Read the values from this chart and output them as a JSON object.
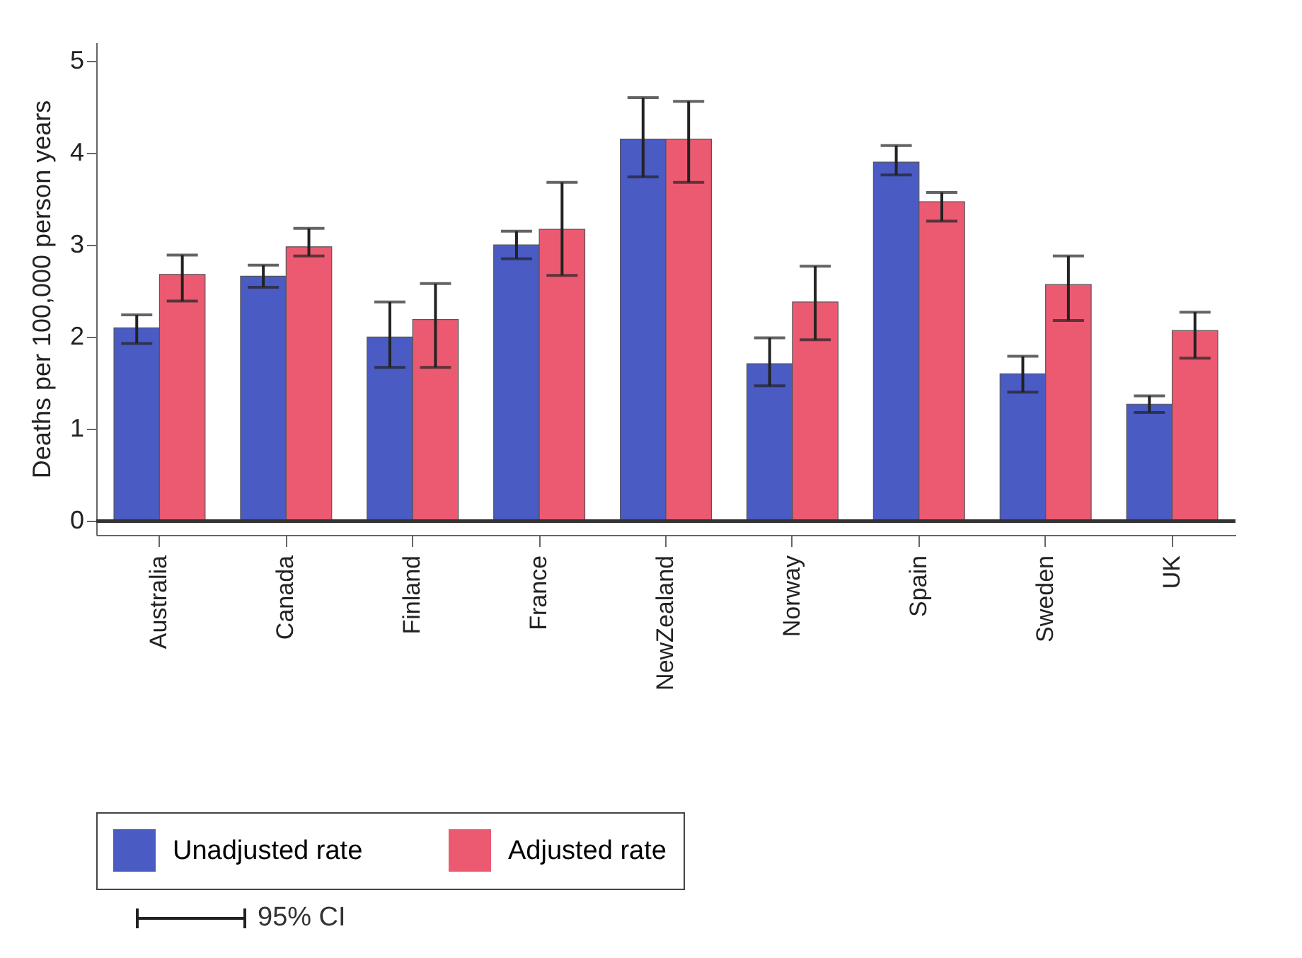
{
  "chart_data": {
    "type": "bar",
    "ylabel": "Deaths per 100,000 person years",
    "categories": [
      "Australia",
      "Canada",
      "Finland",
      "France",
      "NewZealand",
      "Norway",
      "Spain",
      "Sweden",
      "UK"
    ],
    "series": [
      {
        "name": "Unadjusted rate",
        "color": "#4a5bc4",
        "values": [
          2.1,
          2.66,
          2.0,
          3.0,
          4.15,
          1.71,
          3.9,
          1.6,
          1.27
        ],
        "errors": [
          [
            1.93,
            2.24
          ],
          [
            2.54,
            2.78
          ],
          [
            1.67,
            2.38
          ],
          [
            2.85,
            3.15
          ],
          [
            3.74,
            4.6
          ],
          [
            1.47,
            1.99
          ],
          [
            3.76,
            4.08
          ],
          [
            1.4,
            1.79
          ],
          [
            1.18,
            1.36
          ]
        ]
      },
      {
        "name": "Adjusted rate",
        "color": "#ec5a72",
        "values": [
          2.68,
          2.98,
          2.19,
          3.17,
          4.15,
          2.38,
          3.47,
          2.57,
          2.07
        ],
        "errors": [
          [
            2.39,
            2.89
          ],
          [
            2.88,
            3.18
          ],
          [
            1.67,
            2.58
          ],
          [
            2.67,
            3.68
          ],
          [
            3.68,
            4.56
          ],
          [
            1.97,
            2.77
          ],
          [
            3.26,
            3.57
          ],
          [
            2.18,
            2.88
          ],
          [
            1.77,
            2.27
          ]
        ]
      }
    ],
    "ylim": [
      -0.15,
      5.2
    ],
    "yticks": [
      0,
      1,
      2,
      3,
      4,
      5
    ],
    "grid": false,
    "legend": "bottom",
    "ref_lines": [
      {
        "axis": "y",
        "value": 0,
        "color": "#333333"
      }
    ],
    "annotations": [
      "95% CI"
    ]
  }
}
